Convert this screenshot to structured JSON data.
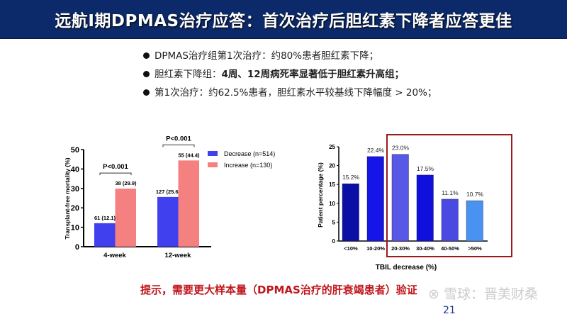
{
  "title": "远航I期DPMAS治疗应答：首次治疗后胆红素下降者应答更佳",
  "bullets": [
    {
      "text": "DPMAS治疗组第1次治疗：约80%患者胆红素下降；",
      "bold": ""
    },
    {
      "text": "胆红素下降组：",
      "bold": "4周、12周病死率显著低于胆红素升高组；"
    },
    {
      "text": "第1次治疗：约62.5%患者，胆红素水平较基线下降幅度 > 20%；",
      "bold": ""
    }
  ],
  "note": "提示，需要更大样本量（DPMAS治疗的肝衰竭患者）验证",
  "watermark": "雪球：晋美财桑",
  "page_number": "21",
  "chart_data": [
    {
      "type": "bar",
      "ylabel": "Transplant-free mortality (%)",
      "ylim": [
        0,
        50
      ],
      "yticks": [
        0,
        10,
        20,
        30,
        40,
        50
      ],
      "categories": [
        "4-week",
        "12-week"
      ],
      "series": [
        {
          "name": "Decrease (n=514)",
          "color": "#4040ee",
          "values": [
            12.1,
            25.6
          ],
          "labels": [
            "61 (12.1)",
            "127 (25.6)"
          ]
        },
        {
          "name": "Increase (n=130)",
          "color": "#f58080",
          "values": [
            29.9,
            44.4
          ],
          "labels": [
            "38 (29.9)",
            "55 (44.4)"
          ]
        }
      ],
      "annotations": [
        "P<0.001",
        "P<0.001"
      ],
      "legend": "right"
    },
    {
      "type": "bar",
      "xlabel": "TBIL decrease (%)",
      "ylabel": "Patient percentage (%)",
      "ylim": [
        0,
        25
      ],
      "yticks": [
        0,
        5,
        10,
        15,
        20,
        25
      ],
      "categories": [
        "<10%",
        "10-20%",
        "20-30%",
        "30-40%",
        "40-50%",
        ">50%"
      ],
      "values": [
        15.2,
        22.4,
        23.0,
        17.5,
        11.1,
        10.7
      ],
      "labels": [
        "15.2%",
        "22.4%",
        "23.0%",
        "17.5%",
        "11.1%",
        "10.7%"
      ],
      "colors": [
        "#0a0fa5",
        "#1515e8",
        "#5858e6",
        "#1010dc",
        "#4a4ae2",
        "#4a92f2"
      ],
      "highlight_box": "20-30% to >50%",
      "highlight_color": "#9b1b1b"
    }
  ]
}
